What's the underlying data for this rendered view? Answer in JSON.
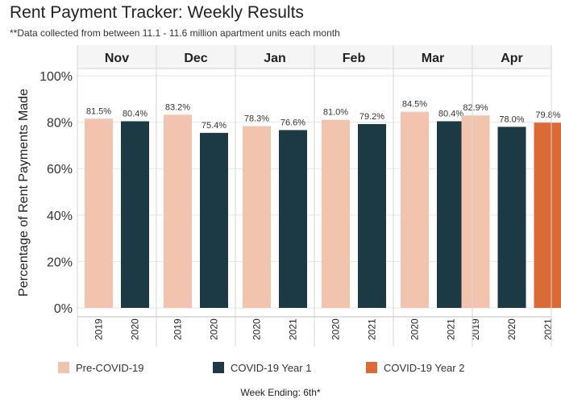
{
  "chart_data": {
    "type": "bar",
    "title": "Rent Payment Tracker: Weekly Results",
    "subtitle": "**Data collected from between 11.1 - 11.6 million apartment units each month",
    "ylabel": "Percentage of Rent Payments Made",
    "xlabel": "Week Ending: 6th*",
    "ylim": [
      0,
      100
    ],
    "yticks": [
      "0%",
      "20%",
      "40%",
      "60%",
      "80%",
      "100%"
    ],
    "grid": true,
    "legend_position": "bottom",
    "colors": {
      "Pre-COVID-19": "#f2c4ad",
      "COVID-19 Year 1": "#1c3a44",
      "COVID-19 Year 2": "#dc6a35"
    },
    "legend": [
      "Pre-COVID-19",
      "COVID-19 Year 1",
      "COVID-19 Year 2"
    ],
    "panels": [
      {
        "month": "Nov",
        "bars": [
          {
            "year": "2019",
            "value": 81.5,
            "label": "81.5%",
            "group": "Pre-COVID-19"
          },
          {
            "year": "2020",
            "value": 80.4,
            "label": "80.4%",
            "group": "COVID-19 Year 1"
          }
        ]
      },
      {
        "month": "Dec",
        "bars": [
          {
            "year": "2019",
            "value": 83.2,
            "label": "83.2%",
            "group": "Pre-COVID-19"
          },
          {
            "year": "2020",
            "value": 75.4,
            "label": "75.4%",
            "group": "COVID-19 Year 1"
          }
        ]
      },
      {
        "month": "Jan",
        "bars": [
          {
            "year": "2020",
            "value": 78.3,
            "label": "78.3%",
            "group": "Pre-COVID-19"
          },
          {
            "year": "2021",
            "value": 76.6,
            "label": "76.6%",
            "group": "COVID-19 Year 1"
          }
        ]
      },
      {
        "month": "Feb",
        "bars": [
          {
            "year": "2020",
            "value": 81.0,
            "label": "81.0%",
            "group": "Pre-COVID-19"
          },
          {
            "year": "2021",
            "value": 79.2,
            "label": "79.2%",
            "group": "COVID-19 Year 1"
          }
        ]
      },
      {
        "month": "Mar",
        "bars": [
          {
            "year": "2020",
            "value": 84.5,
            "label": "84.5%",
            "group": "Pre-COVID-19"
          },
          {
            "year": "2021",
            "value": 80.4,
            "label": "80.4%",
            "group": "COVID-19 Year 1"
          }
        ]
      },
      {
        "month": "Apr",
        "bars": [
          {
            "year": "2019",
            "value": 82.9,
            "label": "82.9%",
            "group": "Pre-COVID-19"
          },
          {
            "year": "2020",
            "value": 78.0,
            "label": "78.0%",
            "group": "COVID-19 Year 1"
          },
          {
            "year": "2021",
            "value": 79.8,
            "label": "79.8%",
            "group": "COVID-19 Year 2"
          }
        ]
      }
    ]
  }
}
